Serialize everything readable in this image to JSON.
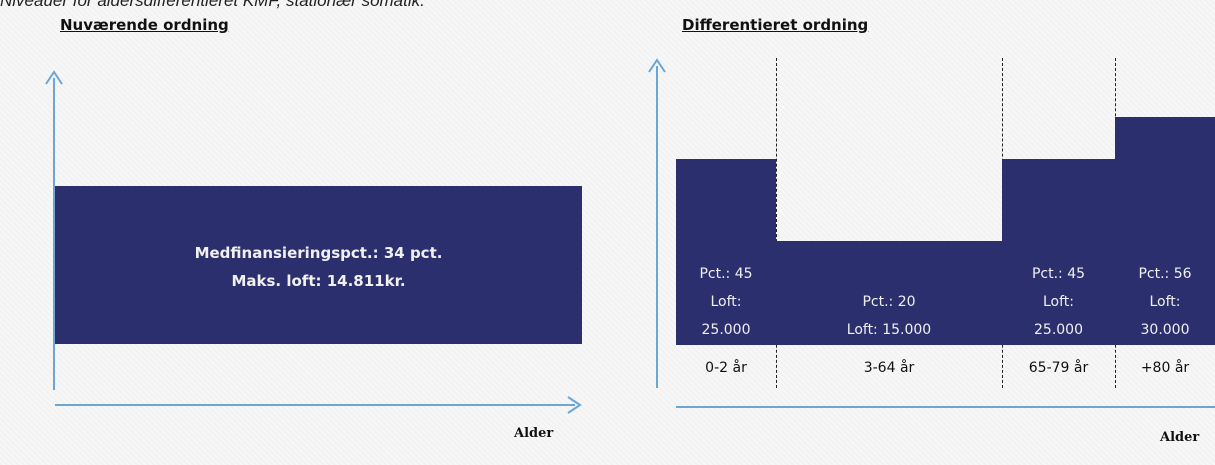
{
  "caption": "Niveauer for aldersdifferentieret KMF, stationær somatik.",
  "left": {
    "heading": "Nuværende ordning",
    "line1": "Medfinansieringspct.: 34 pct.",
    "line2": "Maks. loft: 14.811kr.",
    "axis_label": "Alder"
  },
  "right": {
    "heading": "Differentieret ordning",
    "axis_label": "Alder",
    "groups": [
      {
        "pct": "Pct.: 45",
        "loft_label": "Loft:",
        "loft_value": "25.000",
        "age": "0-2 år"
      },
      {
        "pct": "Pct.: 20",
        "loft_combined": "Loft: 15.000",
        "age": "3-64 år"
      },
      {
        "pct": "Pct.: 45",
        "loft_label": "Loft:",
        "loft_value": "25.000",
        "age": "65-79 år"
      },
      {
        "pct": "Pct.: 56",
        "loft_label": "Loft:",
        "loft_value": "30.000",
        "age": "+80 år"
      }
    ]
  },
  "colors": {
    "block": "#2c2f6e",
    "axis": "#6aa6d6"
  }
}
